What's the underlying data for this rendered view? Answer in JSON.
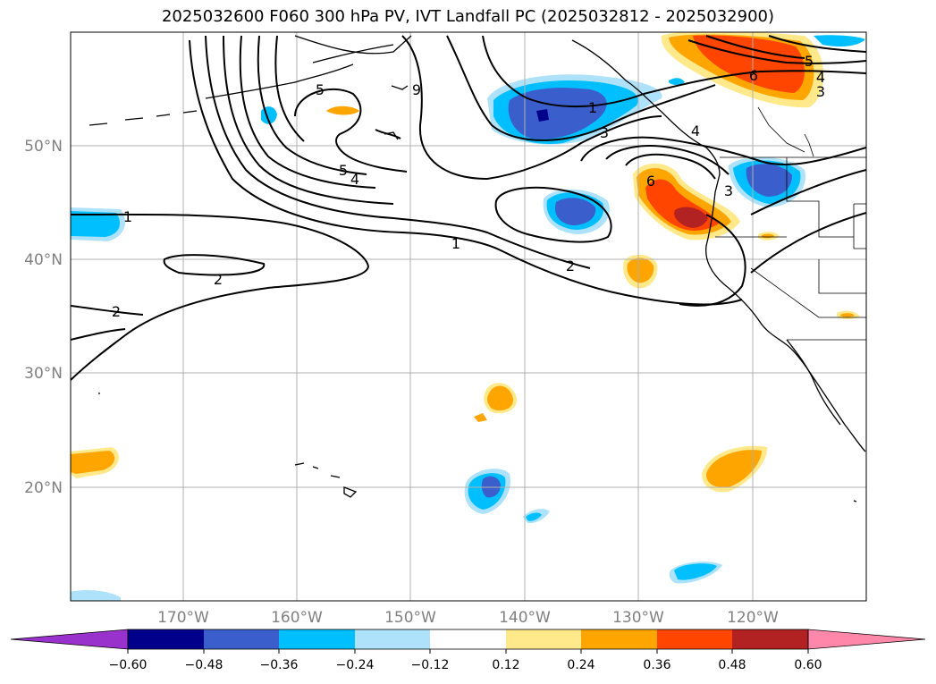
{
  "title": "2025032600 F060 300 hPa PV, IVT Landfall PC (2025032812 - 2025032900)",
  "map": {
    "lat_labels": [
      "50°N",
      "40°N",
      "30°N",
      "20°N"
    ],
    "lon_labels": [
      "170°W",
      "160°W",
      "150°W",
      "140°W",
      "130°W",
      "120°W"
    ],
    "contour_labels": [
      "1",
      "1",
      "1",
      "2",
      "2",
      "2",
      "3",
      "3",
      "3",
      "4",
      "4",
      "4",
      "5",
      "5",
      "5",
      "6",
      "6",
      "9"
    ],
    "fill_colors": {
      "neg_strong": "#00008b",
      "neg_mid": "#3a5fcd",
      "neg": "#00bfff",
      "neg_weak": "#aee2fa",
      "pos_weak": "#ffe98a",
      "pos": "#ffa500",
      "pos_mid": "#ff4500",
      "pos_strong": "#b22222"
    }
  },
  "colorbar": {
    "ticks": [
      "−0.60",
      "−0.48",
      "−0.36",
      "−0.24",
      "−0.12",
      "0.12",
      "0.24",
      "0.36",
      "0.48",
      "0.60"
    ],
    "colors": [
      "#9932cc",
      "#00008b",
      "#3a5fcd",
      "#00bfff",
      "#aee2fa",
      "#ffffff",
      "#ffe98a",
      "#ffa500",
      "#ff4500",
      "#b22222",
      "#ff88aa"
    ]
  }
}
